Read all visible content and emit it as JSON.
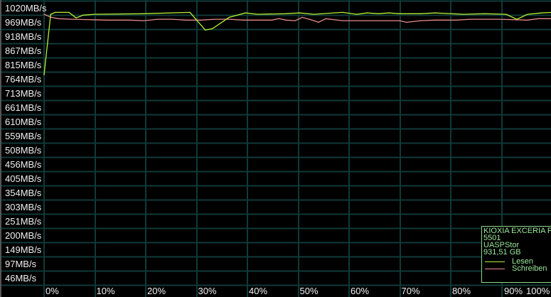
{
  "chart_data": {
    "type": "line",
    "title": "",
    "xlabel": "",
    "ylabel": "",
    "x_unit": "%",
    "y_unit": "MB/s",
    "xlim": [
      0,
      100
    ],
    "ylim": [
      20,
      1046
    ],
    "grid": true,
    "y_tick_labels": [
      "1020MB/s",
      "969MB/s",
      "918MB/s",
      "867MB/s",
      "815MB/s",
      "764MB/s",
      "713MB/s",
      "661MB/s",
      "610MB/s",
      "559MB/s",
      "508MB/s",
      "456MB/s",
      "405MB/s",
      "354MB/s",
      "303MB/s",
      "251MB/s",
      "200MB/s",
      "149MB/s",
      "97MB/s",
      "46MB/s"
    ],
    "y_tick_values": [
      1020,
      969,
      918,
      867,
      815,
      764,
      713,
      661,
      610,
      559,
      508,
      456,
      405,
      354,
      303,
      251,
      200,
      149,
      97,
      46
    ],
    "x_tick_labels": [
      "0%",
      "10%",
      "20%",
      "30%",
      "40%",
      "50%",
      "60%",
      "70%",
      "80%",
      "90%",
      "100%"
    ],
    "legend_placement": "bottom-right",
    "series": [
      {
        "name": "Lesen",
        "color": "#b4f032",
        "points": [
          [
            0,
            779
          ],
          [
            1.3,
            997
          ],
          [
            2.2,
            1004
          ],
          [
            4.9,
            1004
          ],
          [
            6.3,
            984
          ],
          [
            7.7,
            994
          ],
          [
            9.8,
            997
          ],
          [
            19.6,
            999
          ],
          [
            28.7,
            1004
          ],
          [
            31.7,
            940
          ],
          [
            33.1,
            945
          ],
          [
            36.4,
            986
          ],
          [
            39.6,
            1002
          ],
          [
            42,
            997
          ],
          [
            47.6,
            999
          ],
          [
            50.3,
            1002
          ],
          [
            53.1,
            997
          ],
          [
            58.7,
            1004
          ],
          [
            61.5,
            997
          ],
          [
            63.6,
            1002
          ],
          [
            65.7,
            999
          ],
          [
            67.8,
            1002
          ],
          [
            69.9,
            999
          ],
          [
            74.1,
            999
          ],
          [
            76.9,
            1002
          ],
          [
            82.5,
            997
          ],
          [
            86.7,
            999
          ],
          [
            90.9,
            997
          ],
          [
            93,
            979
          ],
          [
            95.1,
            997
          ],
          [
            97.9,
            1002
          ],
          [
            100,
            1004
          ]
        ]
      },
      {
        "name": "Schreiben",
        "color": "#e88a8a",
        "points": [
          [
            0,
            997
          ],
          [
            1.4,
            986
          ],
          [
            2.8,
            981
          ],
          [
            5.6,
            979
          ],
          [
            12.6,
            976
          ],
          [
            16.8,
            976
          ],
          [
            19.6,
            974
          ],
          [
            22.4,
            979
          ],
          [
            25.2,
            979
          ],
          [
            28,
            976
          ],
          [
            30.8,
            976
          ],
          [
            33.6,
            979
          ],
          [
            36.4,
            979
          ],
          [
            39.2,
            976
          ],
          [
            42,
            976
          ],
          [
            44.8,
            976
          ],
          [
            46.2,
            981
          ],
          [
            47.6,
            976
          ],
          [
            49.4,
            974
          ],
          [
            50.8,
            986
          ],
          [
            52.7,
            976
          ],
          [
            54,
            968
          ],
          [
            55.4,
            981
          ],
          [
            58.7,
            974
          ],
          [
            61.5,
            974
          ],
          [
            64.3,
            974
          ],
          [
            69.9,
            974
          ],
          [
            71.3,
            968
          ],
          [
            74.1,
            974
          ],
          [
            76.9,
            976
          ],
          [
            81.1,
            976
          ],
          [
            83.9,
            979
          ],
          [
            89.5,
            979
          ],
          [
            95.1,
            976
          ],
          [
            97.2,
            981
          ],
          [
            100,
            981
          ]
        ]
      }
    ]
  },
  "legend": {
    "device_name": "KIOXIA EXCERIA PLUS",
    "firmware": "5501",
    "driver": "UASPStor",
    "capacity": "931,51 GB",
    "read_label": "Lesen",
    "write_label": "Schreiben"
  },
  "colors": {
    "background": "#000000",
    "grid": "#0f3a38",
    "legend_text": "#9be89b"
  }
}
